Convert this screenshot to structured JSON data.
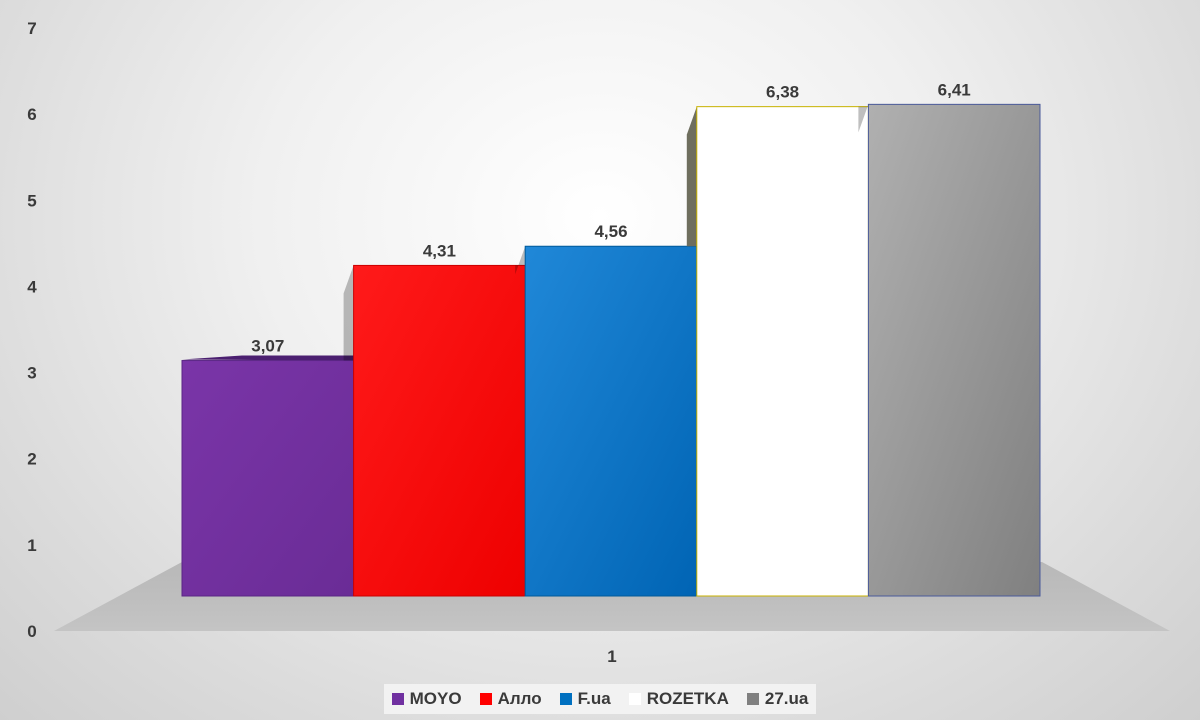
{
  "chart_data": {
    "type": "bar",
    "categories": [
      "1"
    ],
    "series": [
      {
        "name": "MOYO",
        "values": [
          3.07
        ],
        "color": "#7030a0"
      },
      {
        "name": "Алло",
        "values": [
          4.31
        ],
        "color": "#ff0000"
      },
      {
        "name": "F.ua",
        "values": [
          4.56
        ],
        "color": "#0070c0"
      },
      {
        "name": "ROZETKA",
        "values": [
          6.38
        ],
        "color": "#ffffff"
      },
      {
        "name": "27.ua",
        "values": [
          6.41
        ],
        "color": "#a5a5a5"
      }
    ],
    "data_labels": [
      "3,07",
      "4,31",
      "4,56",
      "6,38",
      "6,41"
    ],
    "y_ticks": [
      "0",
      "1",
      "2",
      "3",
      "4",
      "5",
      "6",
      "7"
    ],
    "ylim": [
      0,
      7
    ],
    "grid": false,
    "legend_position": "bottom",
    "style": "3d"
  }
}
